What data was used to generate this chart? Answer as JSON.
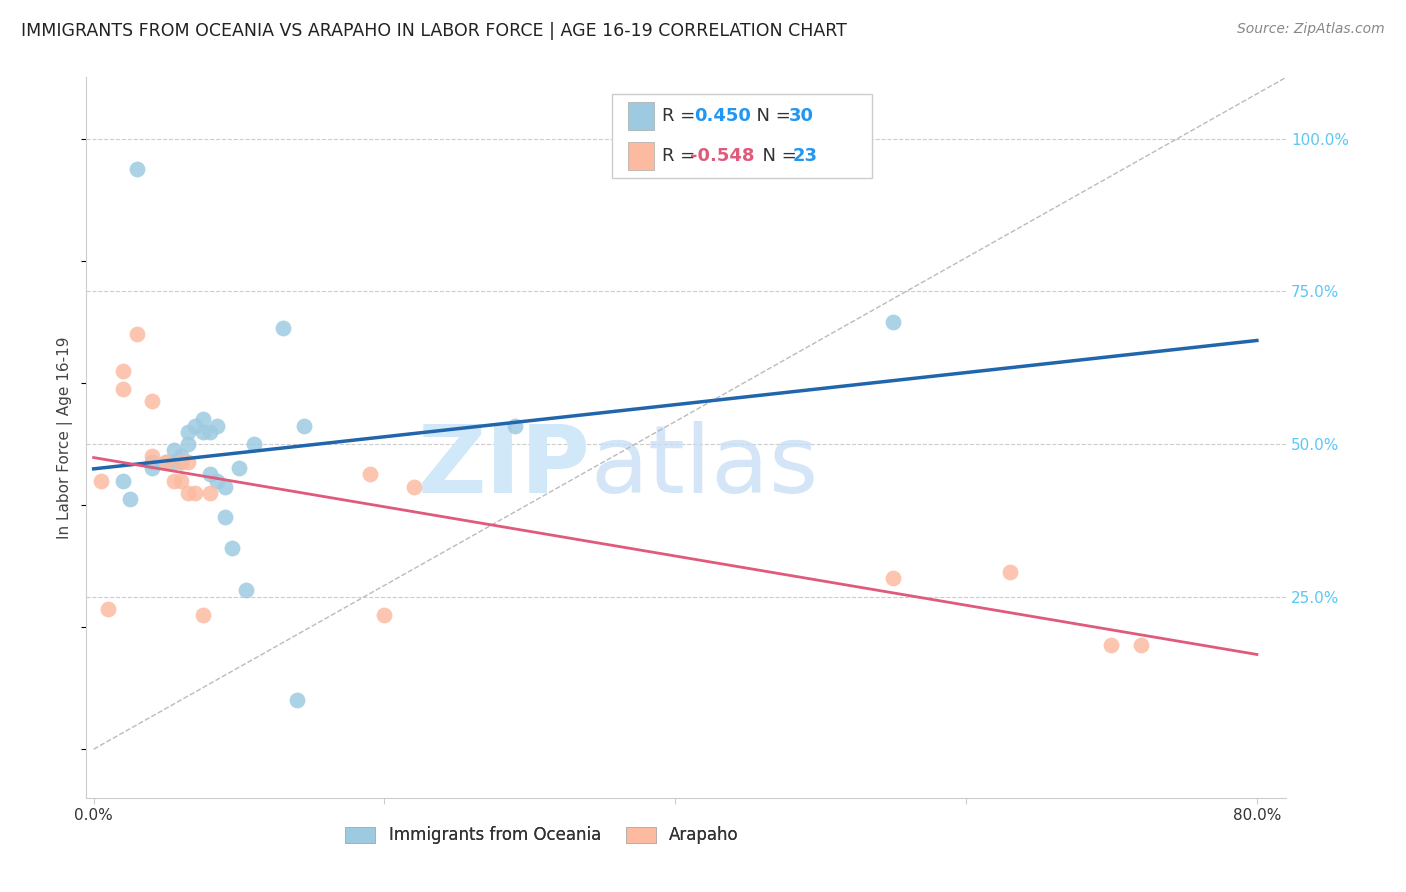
{
  "title": "IMMIGRANTS FROM OCEANIA VS ARAPAHO IN LABOR FORCE | AGE 16-19 CORRELATION CHART",
  "source": "Source: ZipAtlas.com",
  "ylabel": "In Labor Force | Age 16-19",
  "xlim": [
    -0.005,
    0.82
  ],
  "ylim": [
    -0.08,
    1.1
  ],
  "x_tick_positions": [
    0.0,
    0.2,
    0.4,
    0.6,
    0.8
  ],
  "x_tick_labels": [
    "0.0%",
    "",
    "",
    "",
    "80.0%"
  ],
  "y_ticks_right": [
    0.25,
    0.5,
    0.75,
    1.0
  ],
  "y_tick_labels_right": [
    "25.0%",
    "50.0%",
    "75.0%",
    "100.0%"
  ],
  "blue_r": "0.450",
  "blue_n": "30",
  "pink_r": "-0.548",
  "pink_n": "23",
  "legend_label_blue": "Immigrants from Oceania",
  "legend_label_pink": "Arapaho",
  "watermark_zip": "ZIP",
  "watermark_atlas": "atlas",
  "blue_color": "#9ecae1",
  "pink_color": "#fcbba1",
  "blue_line_color": "#2166ac",
  "pink_line_color": "#e05a7a",
  "diag_color": "#bbbbbb",
  "grid_color": "#cccccc",
  "blue_scatter": {
    "x": [
      0.02,
      0.025,
      0.04,
      0.04,
      0.05,
      0.055,
      0.055,
      0.06,
      0.06,
      0.065,
      0.065,
      0.07,
      0.075,
      0.075,
      0.08,
      0.08,
      0.085,
      0.085,
      0.09,
      0.09,
      0.095,
      0.1,
      0.105,
      0.11,
      0.13,
      0.14,
      0.145,
      0.29,
      0.55,
      0.03
    ],
    "y": [
      0.44,
      0.41,
      0.46,
      0.47,
      0.47,
      0.49,
      0.47,
      0.48,
      0.47,
      0.52,
      0.5,
      0.53,
      0.54,
      0.52,
      0.52,
      0.45,
      0.53,
      0.44,
      0.43,
      0.38,
      0.33,
      0.46,
      0.26,
      0.5,
      0.69,
      0.08,
      0.53,
      0.53,
      0.7,
      0.95
    ]
  },
  "pink_scatter": {
    "x": [
      0.005,
      0.01,
      0.02,
      0.02,
      0.03,
      0.04,
      0.04,
      0.05,
      0.055,
      0.06,
      0.06,
      0.065,
      0.065,
      0.07,
      0.075,
      0.08,
      0.19,
      0.2,
      0.22,
      0.55,
      0.63,
      0.7,
      0.72
    ],
    "y": [
      0.44,
      0.23,
      0.62,
      0.59,
      0.68,
      0.57,
      0.48,
      0.47,
      0.44,
      0.44,
      0.47,
      0.47,
      0.42,
      0.42,
      0.22,
      0.42,
      0.45,
      0.22,
      0.43,
      0.28,
      0.29,
      0.17,
      0.17
    ]
  },
  "background_color": "#ffffff"
}
